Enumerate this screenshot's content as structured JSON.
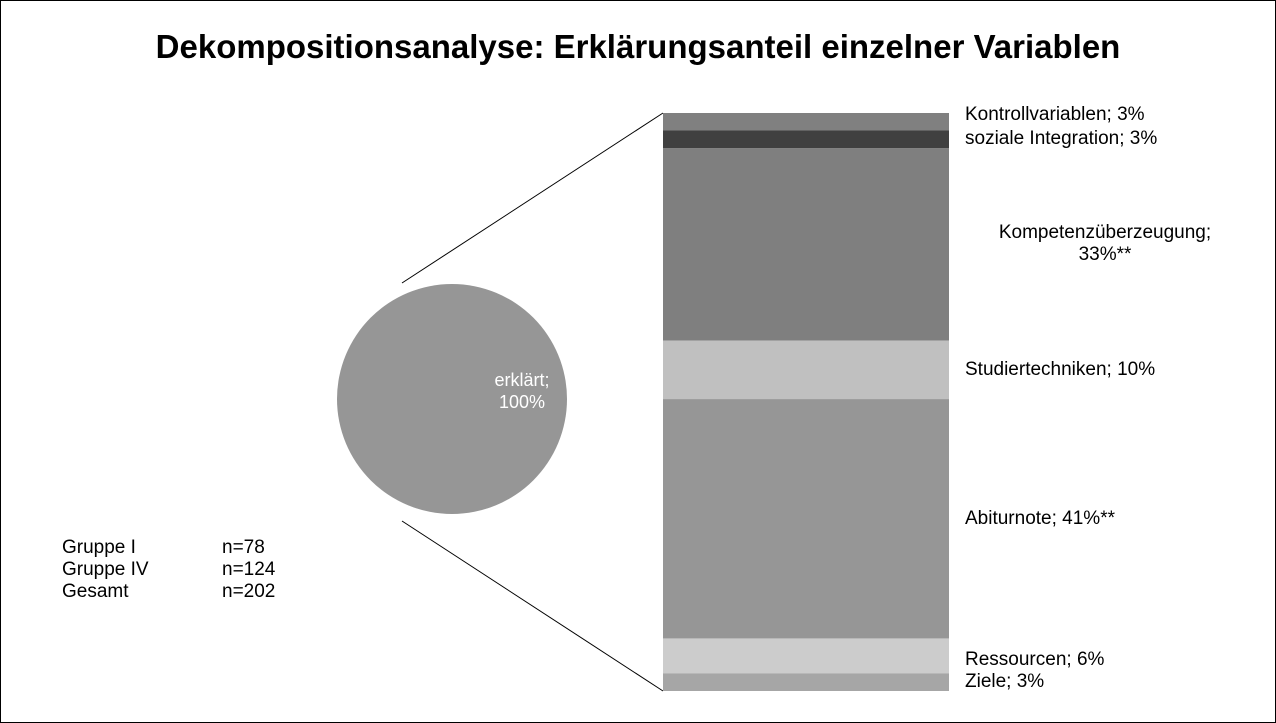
{
  "chart_data": {
    "type": "pie-of-bar",
    "title": "Dekompositionsanalyse: Erklärungsanteil einzelner Variablen",
    "pie": {
      "values": [
        100
      ],
      "value_labels": [
        "erklärt;\n100%"
      ],
      "color": "#969696"
    },
    "bar": {
      "values": [
        3,
        3,
        33,
        10,
        41,
        6,
        3
      ],
      "value_labels": [
        "Kontrollvariablen;  3%",
        "soziale Integration;  3%",
        "Kompetenzüberzeugung;\n33%**",
        "Studiertechniken;  10%",
        "Abiturnote;  41%**",
        "Ressourcen; 6%",
        "Ziele; 3%"
      ],
      "colors": [
        "#808080",
        "#404040",
        "#7f7f7f",
        "#c0c0c0",
        "#969696",
        "#cccccc",
        "#a6a6a6"
      ]
    },
    "annotations": [
      [
        "Gruppe I",
        "n=78"
      ],
      [
        "Gruppe IV",
        "n=124"
      ],
      [
        "Gesamt",
        "n=202"
      ]
    ]
  }
}
